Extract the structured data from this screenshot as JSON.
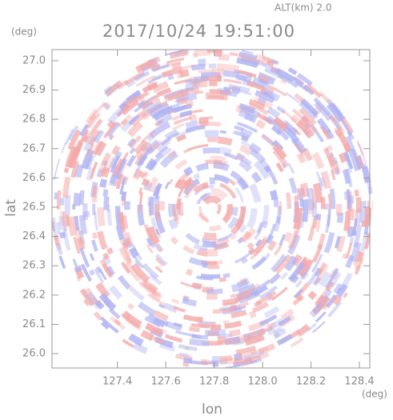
{
  "chart_data": {
    "type": "ppi",
    "subtitle": "ALT(km) 2.0",
    "title": "2017/10/24 19:51:00",
    "y_unit": "(deg)",
    "x_unit": "(deg)",
    "ylabel": "lat",
    "xlabel": "lon",
    "xlim": [
      127.13,
      128.443
    ],
    "ylim": [
      25.951,
      27.038
    ],
    "xticks": [
      127.4,
      127.6,
      127.8,
      {
        "value": 128.0,
        "label": "128.0"
      },
      128.2,
      128.4
    ],
    "yticks": [
      {
        "value": 26.0,
        "label": "26.0"
      },
      26.1,
      26.2,
      26.3,
      26.4,
      26.5,
      26.6,
      26.7,
      26.8,
      26.9,
      {
        "value": 27.0,
        "label": "27.0"
      }
    ],
    "colors": [
      "#f4a9a9",
      "#aeb2f2"
    ]
  }
}
